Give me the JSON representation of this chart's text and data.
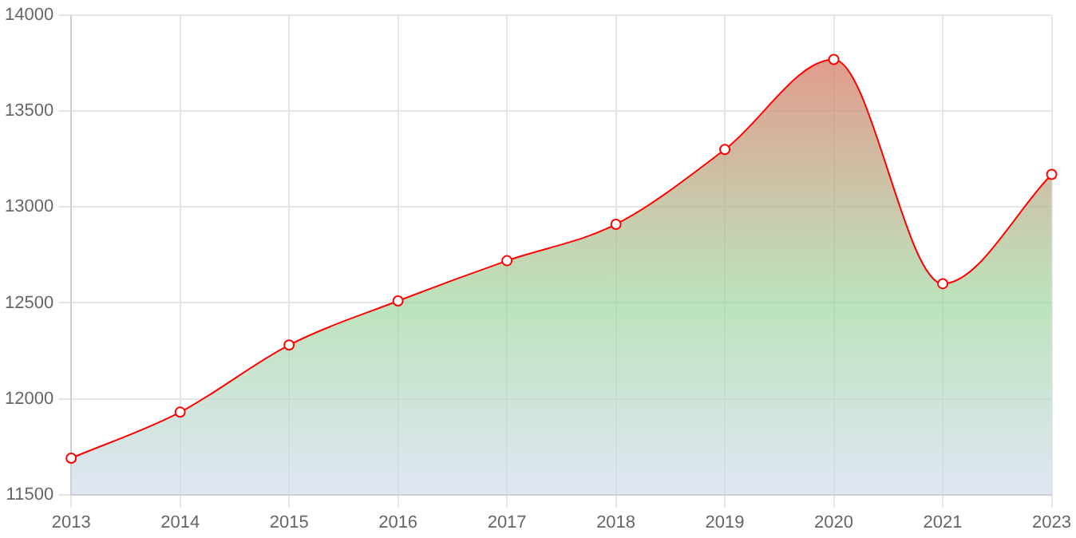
{
  "chart_data": {
    "type": "area",
    "categories": [
      "2013",
      "2014",
      "2015",
      "2016",
      "2017",
      "2018",
      "2019",
      "2020",
      "2021",
      "2023"
    ],
    "series": [
      {
        "color": "#ff0000",
        "values": [
          11690,
          11930,
          12280,
          12510,
          12720,
          12910,
          13300,
          13770,
          12600,
          13170
        ]
      }
    ],
    "ylim": [
      11500,
      14000
    ],
    "yticks": [
      11500,
      12000,
      12500,
      13000,
      13500,
      14000
    ],
    "grid": true,
    "legend": false,
    "marker": "circle"
  }
}
